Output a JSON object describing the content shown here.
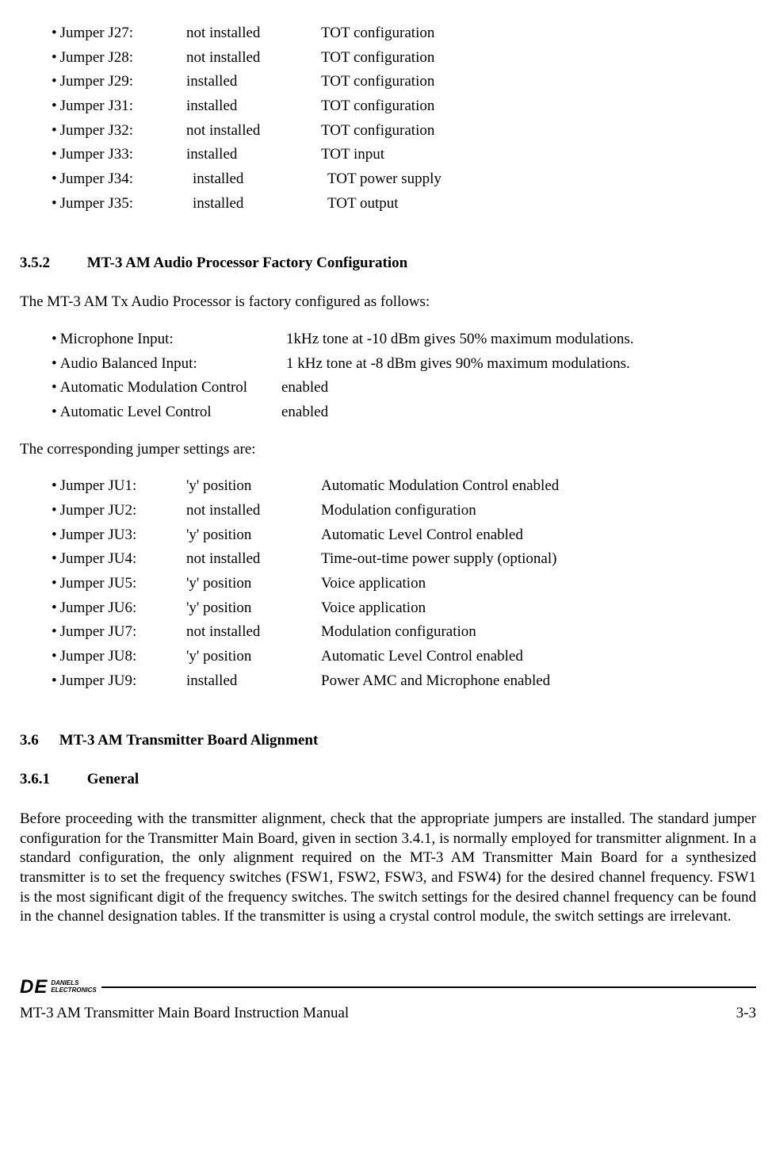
{
  "top_jumpers": [
    {
      "label": "Jumper J27:",
      "state": "not installed",
      "desc": "TOT configuration",
      "state_pad": 0
    },
    {
      "label": "Jumper J28:",
      "state": "not installed",
      "desc": "TOT configuration",
      "state_pad": 0
    },
    {
      "label": "Jumper J29:",
      "state": "installed",
      "desc": "TOT configuration",
      "state_pad": 0
    },
    {
      "label": "Jumper J31:",
      "state": "installed",
      "desc": "TOT configuration",
      "state_pad": 0
    },
    {
      "label": "Jumper J32:",
      "state": "not installed",
      "desc": "TOT configuration",
      "state_pad": 0
    },
    {
      "label": "Jumper J33:",
      "state": "installed",
      "desc": "TOT input",
      "state_pad": 0
    },
    {
      "label": "Jumper J34:",
      "state": "installed",
      "desc": "TOT power supply",
      "state_pad": 8
    },
    {
      "label": "Jumper J35:",
      "state": "installed",
      "desc": "TOT output",
      "state_pad": 8
    }
  ],
  "sec352": {
    "num": "3.5.2",
    "title": "MT-3 AM Audio Processor Factory Configuration",
    "intro": "The MT-3 AM Tx Audio Processor is factory configured as follows:",
    "configs": [
      {
        "label": "Microphone Input:",
        "val": "1kHz tone at -10 dBm gives 50% maximum modulations.",
        "val_pad": 6
      },
      {
        "label": "Audio Balanced Input:",
        "val": "1 kHz tone at -8 dBm gives 90% maximum modulations.",
        "val_pad": 6
      },
      {
        "label": "Automatic Modulation Control",
        "val": "enabled",
        "val_pad": 0
      },
      {
        "label": "Automatic Level Control",
        "val": "enabled",
        "val_pad": 0
      }
    ],
    "jumper_intro": "The corresponding jumper settings are:",
    "jumpers": [
      {
        "label": "Jumper JU1:",
        "state": "'y' position",
        "desc": "Automatic Modulation Control  enabled"
      },
      {
        "label": "Jumper JU2:",
        "state": "not installed",
        "desc": "Modulation  configuration"
      },
      {
        "label": "Jumper JU3:",
        "state": "'y' position",
        "desc": "Automatic Level Control  enabled"
      },
      {
        "label": "Jumper JU4:",
        "state": "not installed",
        "desc": "Time-out-time power supply (optional)"
      },
      {
        "label": "Jumper JU5:",
        "state": "'y' position",
        "desc": "Voice application"
      },
      {
        "label": "Jumper JU6:",
        "state": "'y' position",
        "desc": "Voice application"
      },
      {
        "label": "Jumper JU7:",
        "state": "not installed",
        "desc": "Modulation configuration"
      },
      {
        "label": "Jumper JU8:",
        "state": "'y' position",
        "desc": "Automatic Level Control enabled"
      },
      {
        "label": "Jumper JU9:",
        "state": "installed",
        "desc": "Power AMC and Microphone enabled"
      }
    ]
  },
  "sec36": {
    "num": "3.6",
    "title": "MT-3 AM Transmitter Board Alignment"
  },
  "sec361": {
    "num": "3.6.1",
    "title": "General",
    "body": "Before proceeding with the transmitter alignment, check that the appropriate jumpers are installed. The standard jumper configuration for the Transmitter Main Board, given in section 3.4.1, is normally employed for transmitter alignment.  In a standard configuration, the only alignment required on the MT-3 AM Transmitter Main Board for a synthesized transmitter is to set the frequency switches (FSW1, FSW2, FSW3, and FSW4) for the desired channel frequency.  FSW1 is the most significant digit of the frequency switches.  The switch settings for the desired channel frequency can be found in the channel designation tables.  If the transmitter is using a crystal control module, the switch settings are irrelevant."
  },
  "footer": {
    "logo_de": "DE",
    "logo_line1": "DANIELS",
    "logo_line2": "ELECTRONICS",
    "title": "MT-3 AM Transmitter Main Board Instruction Manual",
    "page": "3-3"
  }
}
